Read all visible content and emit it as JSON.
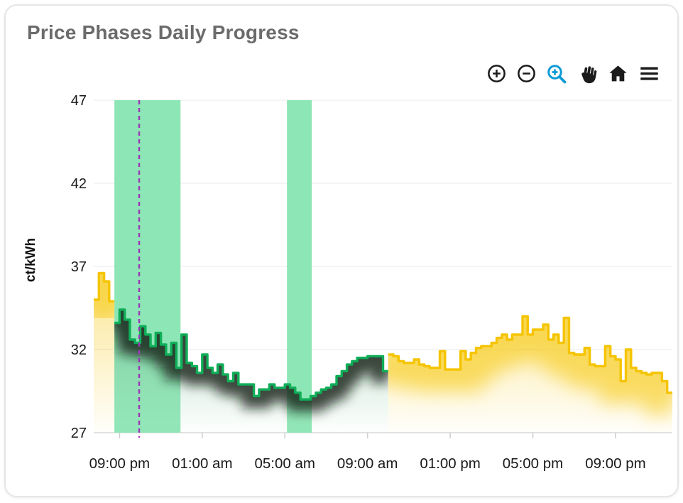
{
  "card": {
    "title": "Price Phases Daily Progress"
  },
  "toolbar": {
    "buttons": [
      "zoom-in",
      "zoom-out",
      "selection-zoom",
      "pan",
      "reset-zoom",
      "menu"
    ],
    "active_button": "selection-zoom",
    "active_color": "#0f9bd7",
    "icon_color": "#1b1b1b"
  },
  "chart_data": {
    "type": "area",
    "stepped": true,
    "title": "Price Phases Daily Progress",
    "xlabel": "",
    "ylabel": "ct/kWh",
    "ylim": [
      27,
      47
    ],
    "yticks": [
      27,
      32,
      37,
      42,
      47
    ],
    "grid": "horizontal-only",
    "legend": "none",
    "x_range_hours": 28,
    "step_hours": 0.25,
    "xticks": [
      {
        "hours": 1.25,
        "label": "09:00 pm"
      },
      {
        "hours": 5.25,
        "label": "01:00 am"
      },
      {
        "hours": 9.25,
        "label": "05:00 am"
      },
      {
        "hours": 13.25,
        "label": "09:00 am"
      },
      {
        "hours": 17.25,
        "label": "01:00 pm"
      },
      {
        "hours": 21.25,
        "label": "05:00 pm"
      },
      {
        "hours": 25.25,
        "label": "09:00 pm"
      }
    ],
    "values": [
      35.0,
      36.6,
      36.1,
      34.9,
      33.6,
      34.4,
      33.8,
      32.6,
      32.4,
      33.4,
      32.9,
      32.2,
      33.0,
      32.3,
      31.7,
      32.4,
      30.9,
      32.9,
      31.2,
      31.0,
      30.6,
      31.7,
      30.9,
      30.6,
      31.1,
      30.5,
      30.1,
      30.6,
      29.9,
      29.9,
      29.9,
      29.2,
      29.6,
      29.6,
      29.9,
      29.7,
      29.7,
      29.9,
      29.7,
      29.4,
      29.0,
      29.0,
      29.2,
      29.4,
      29.6,
      29.7,
      29.9,
      30.4,
      30.7,
      31.1,
      31.3,
      31.5,
      31.5,
      31.6,
      31.6,
      31.6,
      30.7,
      31.7,
      31.6,
      31.3,
      31.2,
      31.2,
      31.4,
      31.1,
      31.0,
      30.9,
      30.9,
      31.9,
      30.8,
      30.8,
      30.8,
      31.9,
      31.4,
      31.8,
      32.1,
      32.2,
      32.2,
      32.4,
      32.7,
      32.9,
      32.6,
      32.9,
      32.9,
      34.0,
      32.9,
      33.2,
      33.2,
      33.5,
      32.6,
      32.9,
      32.4,
      33.9,
      31.8,
      31.7,
      31.7,
      32.1,
      31.1,
      31.0,
      31.0,
      32.2,
      31.6,
      31.4,
      30.1,
      32.0,
      30.9,
      30.7,
      30.6,
      30.5,
      30.6,
      30.6,
      30.1,
      29.4
    ],
    "phases": [
      {
        "name": "yellow",
        "from_index": 0,
        "to_index": 3,
        "color": "#f5c400",
        "shadow": "rgba(245,196,0,0.55)"
      },
      {
        "name": "green",
        "from_index": 4,
        "to_index": 56,
        "color": "#0fae58",
        "shadow": "rgba(16,26,20,0.78)"
      },
      {
        "name": "yellow",
        "from_index": 57,
        "to_index": 111,
        "color": "#f5c400",
        "shadow": "rgba(245,196,0,0.55)"
      }
    ],
    "bands": [
      {
        "from_hours": 1.0,
        "to_hours": 4.2
      },
      {
        "from_hours": 9.35,
        "to_hours": 10.55
      }
    ],
    "band_color": "#8de6b5",
    "now_marker": {
      "hours": 2.2,
      "color": "#9c36b5",
      "style": "dashed"
    }
  }
}
